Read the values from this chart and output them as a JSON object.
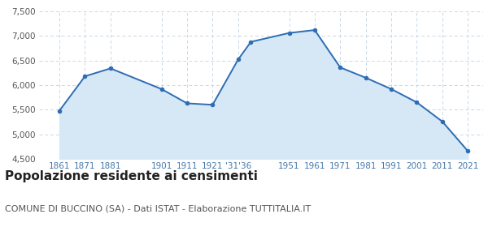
{
  "years": [
    1861,
    1871,
    1881,
    1901,
    1911,
    1921,
    1931,
    1936,
    1951,
    1961,
    1971,
    1981,
    1991,
    2001,
    2011,
    2021
  ],
  "population": [
    5480,
    6180,
    6340,
    5920,
    5630,
    5600,
    6520,
    6880,
    7060,
    7120,
    6360,
    6150,
    5920,
    5650,
    5260,
    4660
  ],
  "line_color": "#2e6db4",
  "fill_color": "#d6e8f5",
  "marker_color": "#2e6db4",
  "background_color": "#ffffff",
  "grid_color": "#c8d8e8",
  "title": "Popolazione residente ai censimenti",
  "subtitle": "COMUNE DI BUCCINO (SA) - Dati ISTAT - Elaborazione TUTTITALIA.IT",
  "ylim": [
    4500,
    7500
  ],
  "yticks": [
    4500,
    5000,
    5500,
    6000,
    6500,
    7000,
    7500
  ],
  "ytick_labels": [
    "4,500",
    "5,000",
    "5,500",
    "6,000",
    "6,500",
    "7,000",
    "7,500"
  ],
  "xtick_positions": [
    1861,
    1871,
    1881,
    1901,
    1911,
    1921,
    1931,
    1951,
    1961,
    1971,
    1981,
    1991,
    2001,
    2011,
    2021
  ],
  "xtick_labels": [
    "1861",
    "1871",
    "1881",
    "1901",
    "1911",
    "1921",
    "‡31‡36",
    "1951",
    "1961",
    "1971",
    "1981",
    "1991",
    "2001",
    "2011",
    "2021"
  ],
  "title_fontsize": 11,
  "subtitle_fontsize": 8,
  "xlim": [
    1853,
    2027
  ]
}
